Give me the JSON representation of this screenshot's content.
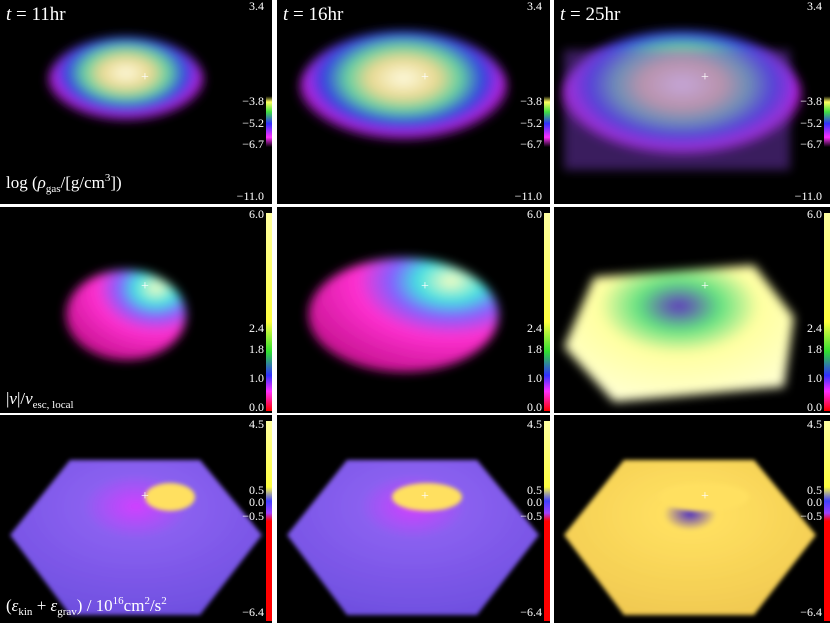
{
  "columns": [
    {
      "title": {
        "var": "t",
        "rest": " = 11hr"
      }
    },
    {
      "title": {
        "var": "t",
        "rest": " = 16hr"
      }
    },
    {
      "title": {
        "var": "t",
        "rest": " = 25hr"
      }
    }
  ],
  "rows": [
    {
      "label": [
        "log",
        " (",
        "ρ",
        "gas",
        "/[g/cm",
        "3",
        "])"
      ],
      "ticks": [
        "3.4",
        "−3.8",
        "−5.2",
        "−6.7",
        "−11.0"
      ]
    },
    {
      "label": [
        "|",
        "v",
        "|/",
        "v",
        "esc, local"
      ],
      "ticks": [
        "6.0",
        "2.4",
        "1.8",
        "1.0",
        "0.0"
      ]
    },
    {
      "label": [
        "(",
        "ε",
        "kin",
        " + ",
        "ε",
        "grav",
        ") / 10",
        "16",
        "cm",
        "2",
        "/s",
        "2"
      ],
      "ticks": [
        "4.5",
        "0.5",
        "0.0",
        "−0.5",
        "−6.4"
      ]
    }
  ]
}
